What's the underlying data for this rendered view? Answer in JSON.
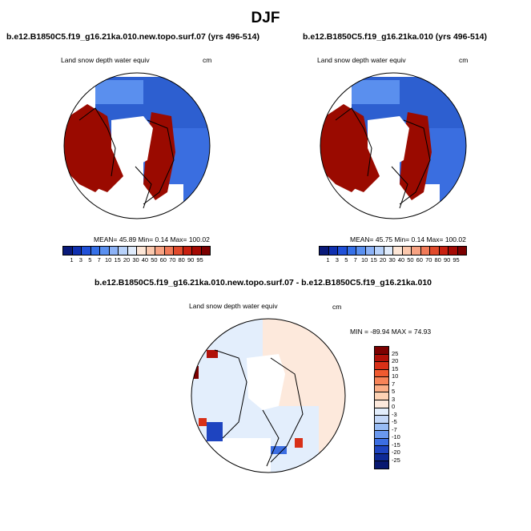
{
  "figure_title": "DJF",
  "panels": [
    {
      "title": "b.e12.B1850C5.f19_g16.21ka.010.new.topo.surf.07 (yrs 496-514)",
      "variable": "Land snow depth water equiv",
      "units": "cm",
      "stats": "MEAN=  45.89  Min=   0.14  Max= 100.02"
    },
    {
      "title": "b.e12.B1850C5.f19_g16.21ka.010 (yrs 496-514)",
      "variable": "Land snow depth water equiv",
      "units": "cm",
      "stats": "MEAN=  45.75  Min=   0.14  Max= 100.02"
    },
    {
      "title": "b.e12.B1850C5.f19_g16.21ka.010.new.topo.surf.07 - b.e12.B1850C5.f19_g16.21ka.010",
      "variable": "Land snow depth water equiv",
      "units": "cm",
      "stats": "MIN = -89.94 MAX =  74.93"
    }
  ],
  "colorbar_abs": {
    "labels": [
      "1",
      "3",
      "5",
      "7",
      "10",
      "15",
      "20",
      "30",
      "40",
      "50",
      "60",
      "70",
      "80",
      "90",
      "95"
    ],
    "colors": [
      "#0a1a7a",
      "#1030b0",
      "#2050d8",
      "#3570e8",
      "#5a90f0",
      "#8cb2f6",
      "#b8d2fa",
      "#e0ecfc",
      "#fde6d6",
      "#fbc8ad",
      "#f7a282",
      "#f07a58",
      "#e04a2c",
      "#c82010",
      "#a40a04",
      "#7c0000"
    ]
  },
  "colorbar_diff": {
    "labels": [
      "25",
      "20",
      "15",
      "10",
      "7",
      "5",
      "3",
      "0",
      "-3",
      "-5",
      "-7",
      "-10",
      "-15",
      "-20",
      "-25"
    ],
    "colors": [
      "#7c0000",
      "#b01008",
      "#d83018",
      "#f05a30",
      "#f78458",
      "#fbae86",
      "#fdd2b4",
      "#fde9dc",
      "#e3eefc",
      "#c4d8f8",
      "#98bcf4",
      "#6a98ee",
      "#3c6ee2",
      "#1e44c0",
      "#0e2a96",
      "#081870"
    ]
  },
  "map_style": {
    "abs_background": "#2d5fd0",
    "abs_land_ice": "#9a0a00",
    "diff_background": "#fde9dc",
    "diff_light": "#e3eefc"
  }
}
